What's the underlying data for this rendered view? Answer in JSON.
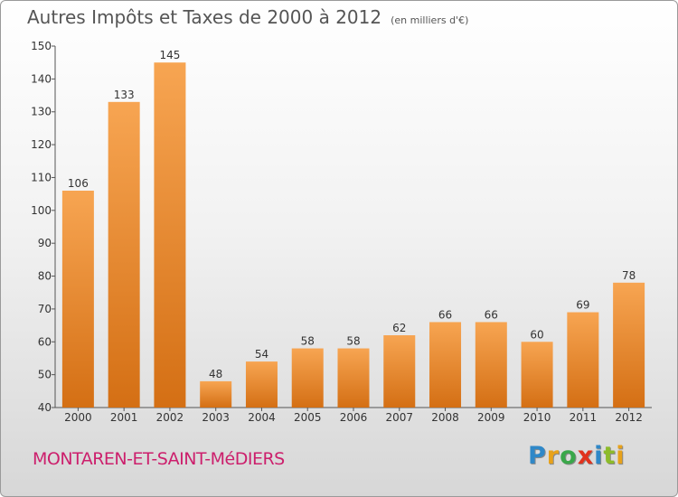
{
  "chart_data": {
    "type": "bar",
    "title": "Autres Impôts et Taxes de 2000 à 2012",
    "subtitle": "(en milliers d'€)",
    "categories": [
      "2000",
      "2001",
      "2002",
      "2003",
      "2004",
      "2005",
      "2006",
      "2007",
      "2008",
      "2009",
      "2010",
      "2011",
      "2012"
    ],
    "values": [
      106,
      133,
      145,
      48,
      54,
      58,
      58,
      62,
      66,
      66,
      60,
      69,
      78
    ],
    "ylim": [
      40,
      150
    ],
    "yticks": [
      40,
      50,
      60,
      70,
      80,
      90,
      100,
      110,
      120,
      130,
      140,
      150
    ],
    "xlabel": "",
    "ylabel": "",
    "grid": false,
    "bar_color_top": "#f7a552",
    "bar_color_bottom": "#d46f14"
  },
  "footer": {
    "commune": "MONTAREN-ET-SAINT-MéDIERS",
    "brand_letters": [
      {
        "char": "P",
        "color": "#2f88c8"
      },
      {
        "char": "r",
        "color": "#e8a21a"
      },
      {
        "char": "o",
        "color": "#3aa74a"
      },
      {
        "char": "x",
        "color": "#e1321d"
      },
      {
        "char": "i",
        "color": "#2f88c8"
      },
      {
        "char": "t",
        "color": "#8dbb2a"
      },
      {
        "char": "i",
        "color": "#e8a21a"
      }
    ]
  }
}
